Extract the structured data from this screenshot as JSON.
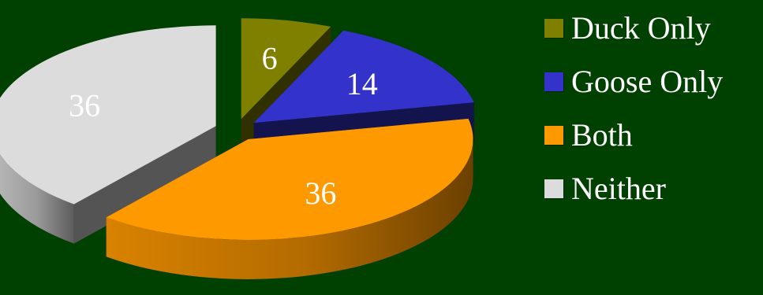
{
  "chart_data": {
    "type": "pie",
    "style": "3d-exploded",
    "title": "",
    "categories": [
      "Duck Only",
      "Goose Only",
      "Both",
      "Neither"
    ],
    "values": [
      6,
      14,
      36,
      36
    ],
    "data_labels": [
      "6",
      "14",
      "36",
      "36"
    ],
    "colors": [
      "#808000",
      "#3333cc",
      "#ff9900",
      "#dcdcdc"
    ],
    "background": "#004000",
    "legend_position": "right",
    "grid": false
  },
  "legend": {
    "items": [
      {
        "label": "Duck Only",
        "color": "#808000"
      },
      {
        "label": "Goose Only",
        "color": "#3333cc"
      },
      {
        "label": "Both",
        "color": "#ff9900"
      },
      {
        "label": "Neither",
        "color": "#dcdcdc"
      }
    ]
  }
}
